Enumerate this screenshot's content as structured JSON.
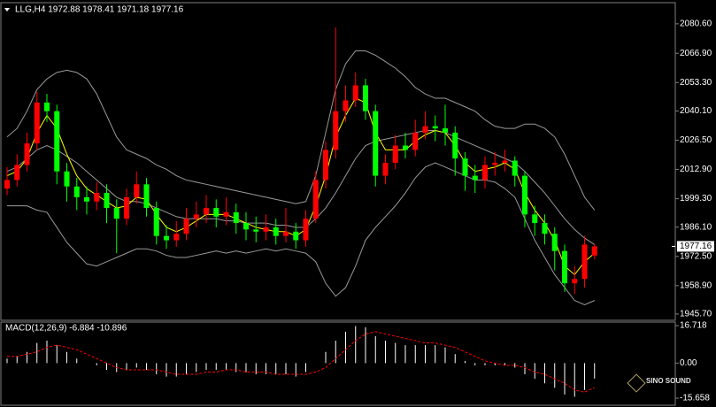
{
  "chart_data": [
    {
      "type": "candlestick",
      "title": "LLG,H4  1972.88 1978.41 1971.18 1977.16",
      "ylim": [
        1942.8,
        2085.9
      ],
      "yticks": [
        {
          "value": 2080.6,
          "label": "2080.60"
        },
        {
          "value": 2066.9,
          "label": "2066.90"
        },
        {
          "value": 2053.3,
          "label": "2053.30"
        },
        {
          "value": 2040.1,
          "label": "2040.10"
        },
        {
          "value": 2026.5,
          "label": "2026.50"
        },
        {
          "value": 2012.9,
          "label": "2012.90"
        },
        {
          "value": 1999.3,
          "label": "1999.30"
        },
        {
          "value": 1986.1,
          "label": "1986.10"
        },
        {
          "value": 1972.5,
          "label": "1972.50"
        },
        {
          "value": 1958.9,
          "label": "1958.90"
        },
        {
          "value": 1945.7,
          "label": "1945.70"
        }
      ],
      "open": [
        2004,
        2008,
        2015,
        2025,
        2044,
        2040,
        2012,
        2005,
        2000,
        1998,
        2002,
        1995,
        1990,
        2000,
        2006,
        1995,
        1982,
        1980,
        1983,
        1990,
        1992,
        1995,
        1991,
        1993,
        1988,
        1985,
        1984,
        1986,
        1982,
        1984,
        1980,
        1990,
        2008,
        2022,
        2040,
        2045,
        2052,
        2040,
        2010,
        2016,
        2024,
        2022,
        2030,
        2033,
        2032,
        2030,
        2018,
        2010,
        2008,
        2015,
        2016,
        2017,
        2010,
        1992,
        1988,
        1983,
        1975,
        1960,
        1962,
        1972.88
      ],
      "high": [
        2014,
        2020,
        2030,
        2049,
        2048,
        2043,
        2016,
        2009,
        2005,
        2007,
        2006,
        1999,
        2004,
        2012,
        2009,
        1998,
        1987,
        1989,
        1995,
        1998,
        2001,
        1999,
        2000,
        1997,
        1993,
        1991,
        1992,
        1990,
        1995,
        1988,
        1994,
        2012,
        2026,
        2078.9,
        2052,
        2058,
        2055,
        2043,
        2020,
        2029,
        2030,
        2036,
        2040,
        2038,
        2043,
        2033,
        2021,
        2015,
        2019,
        2021,
        2022,
        2019,
        2012,
        1996,
        1992,
        1986,
        1978,
        1968,
        1982,
        1978.41
      ],
      "low": [
        2001,
        2005,
        2012,
        2022,
        2035,
        2006,
        1998,
        1994,
        1992,
        1994,
        1988,
        1974,
        1987,
        1997,
        1991,
        1978,
        1976,
        1977,
        1980,
        1986,
        1988,
        1986,
        1987,
        1983,
        1980,
        1979,
        1980,
        1978,
        1979,
        1976,
        1977,
        1988,
        2004,
        2018,
        2035,
        2042,
        2036,
        2005,
        2006,
        2013,
        2018,
        2019,
        2027,
        2026,
        2024,
        2010,
        2003,
        2002,
        2004,
        2010,
        2012,
        2005,
        1986,
        1982,
        1978,
        1966,
        1956,
        1955,
        1958,
        1971.18
      ],
      "close": [
        2008,
        2015,
        2025,
        2044,
        2040,
        2012,
        2005,
        2000,
        1998,
        2002,
        1995,
        1990,
        2000,
        2006,
        1995,
        1982,
        1980,
        1983,
        1990,
        1992,
        1995,
        1991,
        1993,
        1988,
        1985,
        1984,
        1986,
        1982,
        1984,
        1980,
        1990,
        2008,
        2022,
        2040,
        2045,
        2052,
        2040,
        2010,
        2016,
        2024,
        2022,
        2030,
        2033,
        2032,
        2030,
        2018,
        2010,
        2008,
        2015,
        2016,
        2017,
        2010,
        1992,
        1988,
        1983,
        1975,
        1960,
        1962,
        1978,
        1977.16
      ],
      "up_color": "#ff0000",
      "down_color": "#00ff00",
      "lines": [
        {
          "color": "#9a9a9a",
          "values": [
            2028,
            2032,
            2040,
            2050,
            2055,
            2058,
            2059,
            2058,
            2055,
            2048,
            2038,
            2028,
            2022,
            2020,
            2018,
            2015,
            2013,
            2010,
            2008,
            2007,
            2006,
            2005,
            2004,
            2003,
            2002,
            2001,
            2000,
            1999,
            1998,
            1997,
            1998,
            2010,
            2030,
            2050,
            2062,
            2068,
            2068,
            2066,
            2063,
            2060,
            2056,
            2051,
            2048,
            2046,
            2046,
            2044,
            2042,
            2040,
            2036,
            2033,
            2032,
            2032,
            2034,
            2034,
            2032,
            2028,
            2020,
            2010,
            2000,
            1994
          ]
        },
        {
          "color": "#9a9a9a",
          "values": [
            2012,
            2014,
            2018,
            2022,
            2024,
            2022,
            2019,
            2016,
            2012,
            2008,
            2004,
            2000,
            1998,
            1998,
            1997,
            1995,
            1993,
            1991,
            1990,
            1990,
            1990,
            1990,
            1989,
            1989,
            1988,
            1988,
            1988,
            1987,
            1987,
            1986,
            1986,
            1990,
            1995,
            2002,
            2010,
            2018,
            2024,
            2026,
            2027,
            2028,
            2029,
            2030,
            2031,
            2031,
            2030,
            2028,
            2026,
            2024,
            2022,
            2020,
            2018,
            2016,
            2012,
            2007,
            2002,
            1996,
            1990,
            1985,
            1981,
            1978
          ]
        },
        {
          "color": "#9a9a9a",
          "values": [
            1996,
            1996,
            1996,
            1994,
            1993,
            1986,
            1979,
            1974,
            1969,
            1968,
            1970,
            1972,
            1974,
            1976,
            1976,
            1975,
            1973,
            1972,
            1972,
            1973,
            1974,
            1975,
            1974,
            1975,
            1974,
            1975,
            1976,
            1975,
            1976,
            1975,
            1974,
            1970,
            1960,
            1954,
            1958,
            1968,
            1980,
            1986,
            1991,
            1996,
            2002,
            2009,
            2014,
            2016,
            2014,
            2012,
            2010,
            2008,
            2008,
            2007,
            2004,
            2000,
            1990,
            1980,
            1972,
            1964,
            1958,
            1952,
            1950,
            1952
          ]
        },
        {
          "color": "#ffff00",
          "values": [
            2010,
            2012,
            2018,
            2030,
            2038,
            2032,
            2020,
            2010,
            2004,
            2001,
            1998,
            1995,
            1996,
            2000,
            1999,
            1992,
            1986,
            1984,
            1986,
            1989,
            1992,
            1992,
            1992,
            1990,
            1988,
            1986,
            1985,
            1984,
            1984,
            1982,
            1985,
            1996,
            2010,
            2028,
            2038,
            2046,
            2044,
            2030,
            2022,
            2022,
            2022,
            2026,
            2029,
            2031,
            2030,
            2024,
            2016,
            2012,
            2013,
            2014,
            2016,
            2013,
            2002,
            1994,
            1988,
            1980,
            1968,
            1964,
            1970,
            1974
          ]
        }
      ],
      "logo": "SINO SOUND"
    },
    {
      "type": "macd",
      "title": "MACD(12,26,9) -6.884 -10.896",
      "ylim": [
        -18,
        18.3
      ],
      "yticks": [
        16.718,
        {
          "value": 0,
          "label": "0.00"
        },
        -15.658
      ],
      "histogram": [
        2,
        3,
        5,
        9,
        10,
        8,
        5,
        2,
        0,
        -1,
        -3,
        -4,
        -3,
        -2,
        -3,
        -5,
        -6,
        -6,
        -5,
        -4,
        -3,
        -3,
        -3,
        -4,
        -4,
        -5,
        -5,
        -5,
        -5,
        -6,
        -4,
        0,
        5,
        10,
        14,
        16.5,
        16,
        12,
        10,
        9,
        8,
        8,
        8,
        8,
        7,
        4,
        1,
        -1,
        -1,
        -1,
        -1,
        -2,
        -5,
        -7,
        -9,
        -11,
        -14,
        -15,
        -12,
        -6.884
      ],
      "histogram_color": "#ffffff",
      "signal": [
        3,
        3,
        4,
        5,
        7,
        8,
        7,
        6,
        4,
        2,
        0,
        -2,
        -3,
        -3,
        -3,
        -3,
        -4,
        -5,
        -5,
        -5,
        -4,
        -4,
        -3,
        -3,
        -4,
        -4,
        -4,
        -5,
        -5,
        -5,
        -5,
        -4,
        -2,
        2,
        6,
        10,
        13,
        14,
        13,
        12,
        11,
        10,
        9,
        9,
        8,
        7,
        5,
        3,
        1,
        0,
        -1,
        -1,
        -2,
        -4,
        -5,
        -7,
        -9,
        -12,
        -13,
        -10.896
      ],
      "signal_color": "#ff0000"
    }
  ]
}
